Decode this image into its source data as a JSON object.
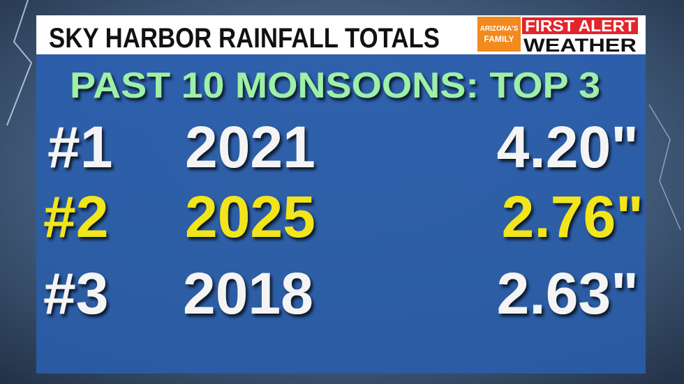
{
  "header": {
    "title": "SKY HARBOR RAINFALL TOTALS",
    "logo": {
      "station_top": "ARIZONA'S",
      "station_bottom": "FAMILY",
      "brand_top": "FIRST ALERT",
      "brand_bottom": "WEATHER"
    }
  },
  "subtitle": "PAST 10 MONSOONS:  TOP 3",
  "rows": [
    {
      "rank": "#1",
      "year": "2021",
      "amount": "4.20\""
    },
    {
      "rank": "#2",
      "year": "2025",
      "amount": "2.76\""
    },
    {
      "rank": "#3",
      "year": "2018",
      "amount": "2.63\""
    }
  ]
}
